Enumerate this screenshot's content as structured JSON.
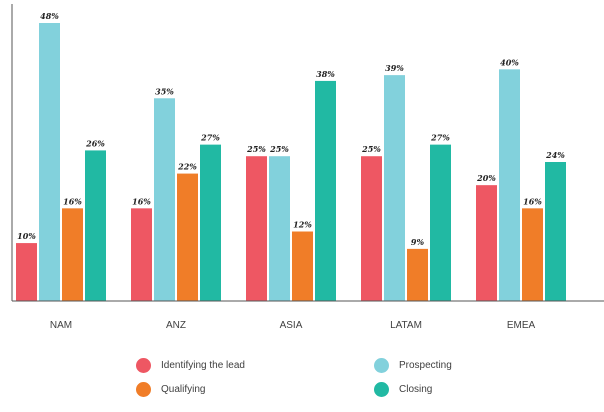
{
  "chart_data": {
    "type": "bar",
    "categories": [
      "NAM",
      "ANZ",
      "ASIA",
      "LATAM",
      "EMEA"
    ],
    "series": [
      {
        "name": "Identifying the lead",
        "values": [
          10,
          16,
          25,
          25,
          20
        ],
        "color": "#ee5763"
      },
      {
        "name": "Prospecting",
        "values": [
          48,
          35,
          25,
          39,
          40
        ],
        "color": "#82d1dc"
      },
      {
        "name": "Qualifying",
        "values": [
          16,
          22,
          12,
          9,
          16
        ],
        "color": "#f07d28"
      },
      {
        "name": "Closing",
        "values": [
          26,
          27,
          38,
          27,
          24
        ],
        "color": "#21b9a3"
      }
    ],
    "value_suffix": "%",
    "ylim": [
      0,
      48
    ],
    "grid": false,
    "legend_position": "bottom"
  }
}
